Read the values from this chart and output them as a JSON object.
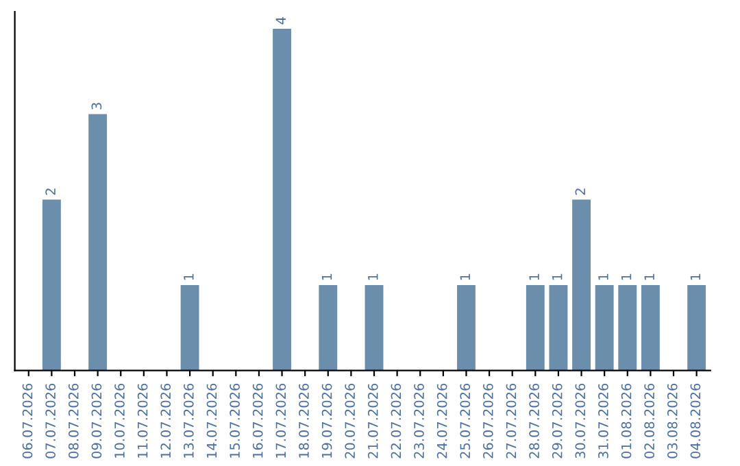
{
  "chart_data": {
    "type": "bar",
    "categories": [
      "06.07.2026",
      "07.07.2026",
      "08.07.2026",
      "09.07.2026",
      "10.07.2026",
      "11.07.2026",
      "12.07.2026",
      "13.07.2026",
      "14.07.2026",
      "15.07.2026",
      "16.07.2026",
      "17.07.2026",
      "18.07.2026",
      "19.07.2026",
      "20.07.2026",
      "21.07.2026",
      "22.07.2026",
      "23.07.2026",
      "24.07.2026",
      "25.07.2026",
      "26.07.2026",
      "27.07.2026",
      "28.07.2026",
      "29.07.2026",
      "30.07.2026",
      "31.07.2026",
      "01.08.2026",
      "02.08.2026",
      "03.08.2026",
      "04.08.2026"
    ],
    "values": [
      0,
      2,
      0,
      3,
      0,
      0,
      0,
      1,
      0,
      0,
      0,
      4,
      0,
      1,
      0,
      1,
      0,
      0,
      0,
      1,
      0,
      0,
      1,
      1,
      2,
      1,
      1,
      1,
      0,
      1
    ],
    "value_labels": [
      null,
      "2",
      null,
      "3",
      null,
      null,
      null,
      "1",
      null,
      null,
      null,
      "4",
      null,
      "1",
      null,
      "1",
      null,
      null,
      null,
      "1",
      null,
      null,
      "1",
      "1",
      "2",
      "1",
      "1",
      "1",
      null,
      "1"
    ],
    "color": "#6c8ead",
    "tick_labels": "x",
    "grid": false,
    "legend": false
  }
}
